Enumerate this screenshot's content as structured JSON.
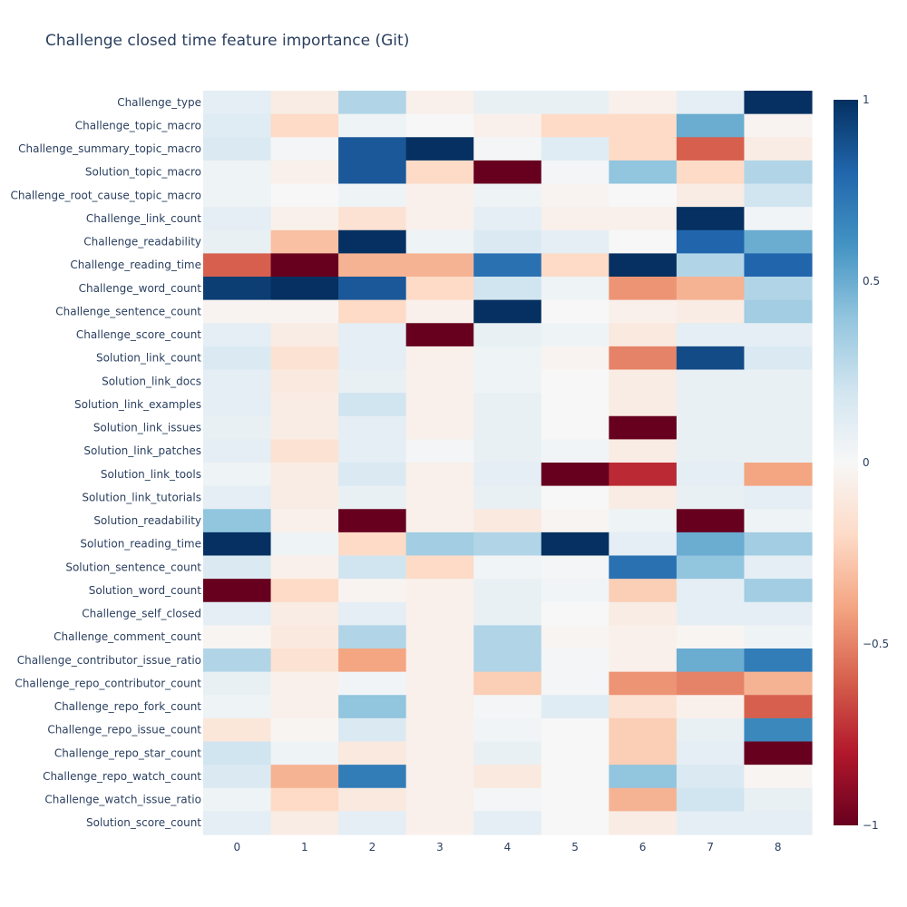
{
  "chart_data": {
    "type": "heatmap",
    "title": "Challenge closed time feature importance (Git)",
    "x": [
      "0",
      "1",
      "2",
      "3",
      "4",
      "5",
      "6",
      "7",
      "8"
    ],
    "y": [
      "Challenge_type",
      "Challenge_topic_macro",
      "Challenge_summary_topic_macro",
      "Solution_topic_macro",
      "Challenge_root_cause_topic_macro",
      "Challenge_link_count",
      "Challenge_readability",
      "Challenge_reading_time",
      "Challenge_word_count",
      "Challenge_sentence_count",
      "Challenge_score_count",
      "Solution_link_count",
      "Solution_link_docs",
      "Solution_link_examples",
      "Solution_link_issues",
      "Solution_link_patches",
      "Solution_link_tools",
      "Solution_link_tutorials",
      "Solution_readability",
      "Solution_reading_time",
      "Solution_sentence_count",
      "Solution_word_count",
      "Challenge_self_closed",
      "Challenge_comment_count",
      "Challenge_contributor_issue_ratio",
      "Challenge_repo_contributor_count",
      "Challenge_repo_fork_count",
      "Challenge_repo_issue_count",
      "Challenge_repo_star_count",
      "Challenge_repo_watch_count",
      "Challenge_watch_issue_ratio",
      "Solution_score_count"
    ],
    "z": [
      [
        0.1,
        -0.08,
        0.3,
        -0.05,
        0.08,
        0.08,
        -0.05,
        0.1,
        1.0
      ],
      [
        0.12,
        -0.2,
        0.05,
        0.0,
        -0.05,
        -0.2,
        -0.2,
        0.5,
        -0.03
      ],
      [
        0.15,
        0.02,
        0.85,
        1.0,
        0.02,
        0.12,
        -0.2,
        -0.6,
        -0.08
      ],
      [
        0.05,
        -0.05,
        0.85,
        -0.2,
        -1.0,
        0.02,
        0.4,
        -0.2,
        0.3
      ],
      [
        0.05,
        0.0,
        0.05,
        -0.05,
        0.05,
        -0.03,
        0.0,
        -0.08,
        0.2
      ],
      [
        0.1,
        -0.05,
        -0.15,
        -0.05,
        0.1,
        -0.05,
        -0.05,
        1.0,
        0.03
      ],
      [
        0.08,
        -0.3,
        1.0,
        0.05,
        0.15,
        0.1,
        0.0,
        0.8,
        0.5
      ],
      [
        -0.6,
        -1.0,
        -0.35,
        -0.35,
        0.75,
        -0.2,
        1.0,
        0.3,
        0.8
      ],
      [
        0.95,
        1.0,
        0.85,
        -0.2,
        0.2,
        0.05,
        -0.45,
        -0.35,
        0.3
      ],
      [
        -0.03,
        -0.03,
        -0.2,
        -0.05,
        1.0,
        0.0,
        -0.05,
        -0.08,
        0.35
      ],
      [
        0.1,
        -0.08,
        0.1,
        -1.0,
        0.08,
        0.05,
        -0.1,
        0.1,
        0.1
      ],
      [
        0.15,
        -0.15,
        0.1,
        -0.05,
        0.05,
        -0.03,
        -0.5,
        0.9,
        0.15
      ],
      [
        0.1,
        -0.1,
        0.08,
        -0.05,
        0.05,
        0.0,
        -0.08,
        0.08,
        0.08
      ],
      [
        0.1,
        -0.08,
        0.2,
        -0.05,
        0.08,
        0.0,
        -0.08,
        0.08,
        0.08
      ],
      [
        0.08,
        -0.08,
        0.1,
        -0.05,
        0.08,
        0.0,
        -1.0,
        0.08,
        0.08
      ],
      [
        0.1,
        -0.15,
        0.1,
        0.02,
        0.08,
        0.03,
        -0.08,
        0.08,
        0.08
      ],
      [
        0.05,
        -0.08,
        0.15,
        -0.05,
        0.1,
        -1.0,
        -0.75,
        0.1,
        -0.4
      ],
      [
        0.1,
        -0.08,
        0.08,
        -0.05,
        0.08,
        0.0,
        -0.08,
        0.08,
        0.1
      ],
      [
        0.4,
        -0.05,
        -1.0,
        -0.05,
        -0.1,
        -0.02,
        0.05,
        -1.0,
        0.05
      ],
      [
        1.0,
        0.05,
        -0.2,
        0.35,
        0.3,
        1.0,
        0.1,
        0.5,
        0.35
      ],
      [
        0.15,
        -0.05,
        0.2,
        -0.2,
        0.03,
        0.02,
        0.75,
        0.4,
        0.1
      ],
      [
        -1.0,
        -0.2,
        -0.03,
        -0.05,
        0.08,
        0.03,
        -0.25,
        0.1,
        0.35
      ],
      [
        0.1,
        -0.08,
        0.1,
        -0.05,
        0.08,
        0.0,
        -0.08,
        0.1,
        0.1
      ],
      [
        -0.02,
        -0.1,
        0.3,
        -0.05,
        0.3,
        -0.02,
        -0.05,
        -0.02,
        0.05
      ],
      [
        0.3,
        -0.15,
        -0.4,
        -0.05,
        0.3,
        0.02,
        -0.05,
        0.5,
        0.7
      ],
      [
        0.08,
        -0.05,
        0.03,
        -0.05,
        -0.25,
        0.02,
        -0.45,
        -0.5,
        -0.35
      ],
      [
        0.05,
        -0.05,
        0.4,
        -0.05,
        0.02,
        0.12,
        -0.15,
        -0.05,
        -0.6
      ],
      [
        -0.12,
        -0.02,
        0.15,
        -0.05,
        0.03,
        0.0,
        -0.25,
        0.08,
        0.65
      ],
      [
        0.2,
        0.05,
        -0.1,
        -0.05,
        0.08,
        0.0,
        -0.25,
        0.1,
        -1.0
      ],
      [
        0.15,
        -0.35,
        0.7,
        -0.05,
        -0.1,
        0.0,
        0.4,
        0.15,
        -0.02
      ],
      [
        0.05,
        -0.2,
        -0.1,
        -0.05,
        0.02,
        0.0,
        -0.35,
        0.2,
        0.08
      ],
      [
        0.1,
        -0.08,
        0.1,
        -0.05,
        0.1,
        0.0,
        -0.08,
        0.1,
        0.1
      ]
    ],
    "zlim": [
      -1,
      1
    ],
    "colorscale": [
      [
        0,
        "#67001f"
      ],
      [
        0.1,
        "#b2182b"
      ],
      [
        0.2,
        "#d6604d"
      ],
      [
        0.3,
        "#f4a582"
      ],
      [
        0.4,
        "#fddbc7"
      ],
      [
        0.5,
        "#f7f7f7"
      ],
      [
        0.6,
        "#d1e5f0"
      ],
      [
        0.7,
        "#92c5de"
      ],
      [
        0.8,
        "#4393c3"
      ],
      [
        0.9,
        "#2166ac"
      ],
      [
        1,
        "#053061"
      ]
    ],
    "colorbar_ticks": [
      {
        "value": 1,
        "label": "1"
      },
      {
        "value": 0.5,
        "label": "0.5"
      },
      {
        "value": 0,
        "label": "0"
      },
      {
        "value": -0.5,
        "label": "−0.5"
      },
      {
        "value": -1,
        "label": "−1"
      }
    ],
    "legend": "colorbar-right",
    "grid": false
  }
}
